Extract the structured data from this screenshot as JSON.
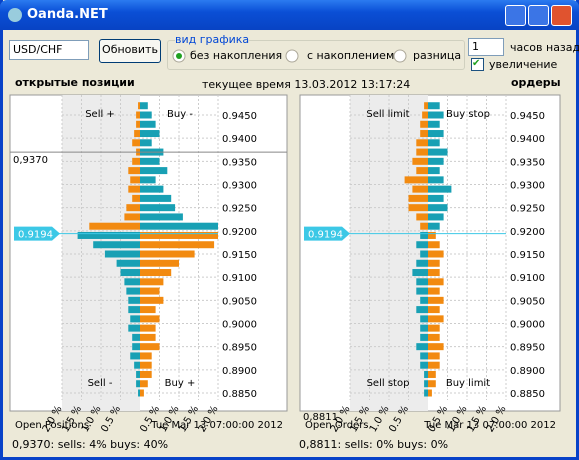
{
  "window": {
    "title": "Oanda.NET"
  },
  "controls": {
    "pair": "USD/CHF",
    "refresh": "Обновить",
    "group_title": "вид графика",
    "radios": [
      "без накопления",
      "с накоплением",
      "разница"
    ],
    "hours": "1",
    "hours_label": "часов назад",
    "zoom": "увеличение"
  },
  "header": {
    "left": "открытые позиции",
    "time": "текущее время 13.03.2012 13:17:24",
    "right": "ордеры"
  },
  "colors": {
    "above": "#f28a10",
    "below": "#18a0b4",
    "alt": "#18a0b4"
  },
  "current_price": {
    "value": 0.9194,
    "label": "0.9194"
  },
  "price_ticks": [
    {
      "value": 0.945,
      "label": "0.9450"
    },
    {
      "value": 0.94,
      "label": "0.9400"
    },
    {
      "value": 0.935,
      "label": "0.9350"
    },
    {
      "value": 0.93,
      "label": "0.9300"
    },
    {
      "value": 0.925,
      "label": "0.9250"
    },
    {
      "value": 0.92,
      "label": "0.9200"
    },
    {
      "value": 0.915,
      "label": "0.9150"
    },
    {
      "value": 0.91,
      "label": "0.9100"
    },
    {
      "value": 0.905,
      "label": "0.9050"
    },
    {
      "value": 0.9,
      "label": "0.9000"
    },
    {
      "value": 0.895,
      "label": "0.8950"
    },
    {
      "value": 0.89,
      "label": "0.8900"
    },
    {
      "value": 0.885,
      "label": "0.8850"
    }
  ],
  "pct_ticks": [
    {
      "value": 2,
      "label": "2.0 %"
    },
    {
      "value": 1.5,
      "label": "1.5 %"
    },
    {
      "value": 1,
      "label": "1.0 %"
    },
    {
      "value": 0.5,
      "label": "0.5 %"
    }
  ],
  "levels": [
    0.947,
    0.945,
    0.943,
    0.941,
    0.939,
    0.937,
    0.935,
    0.933,
    0.931,
    0.929,
    0.927,
    0.925,
    0.923,
    0.921,
    0.919,
    0.917,
    0.915,
    0.913,
    0.911,
    0.909,
    0.907,
    0.905,
    0.903,
    0.901,
    0.899,
    0.897,
    0.895,
    0.893,
    0.891,
    0.889,
    0.887,
    0.885
  ],
  "positions": {
    "quadrants": [
      "Sell +",
      "Buy -",
      "Sell -",
      "Buy +"
    ],
    "marker": {
      "value": 0.937,
      "label": "0,9370"
    },
    "footer": "Open Positions",
    "date": "Tue Mar 13 07:00:00 2012",
    "status": "0,9370:  sells: 4%  buys: 40%",
    "sells": [
      0.05,
      0.1,
      0.1,
      0.15,
      0.2,
      0.1,
      0.2,
      0.3,
      0.25,
      0.3,
      0.2,
      0.35,
      0.4,
      1.3,
      1.6,
      1.2,
      0.9,
      0.6,
      0.5,
      0.4,
      0.35,
      0.3,
      0.3,
      0.25,
      0.3,
      0.2,
      0.2,
      0.25,
      0.15,
      0.1,
      0.1,
      0.05
    ],
    "buys": [
      0.2,
      0.3,
      0.4,
      0.5,
      0.3,
      0.6,
      0.5,
      0.7,
      0.4,
      0.6,
      0.8,
      0.9,
      1.1,
      2.0,
      2.0,
      1.9,
      1.4,
      1.0,
      0.8,
      0.6,
      0.5,
      0.6,
      0.4,
      0.5,
      0.4,
      0.4,
      0.5,
      0.3,
      0.3,
      0.3,
      0.2,
      0.1
    ]
  },
  "orders": {
    "quadrants": [
      "Sell limit",
      "Buy stop",
      "Sell stop",
      "Buy limit"
    ],
    "marker": {
      "value": 0.8811,
      "label": "0,8811"
    },
    "footer": "Open Orders",
    "date": "Tue Mar 13 07:00:00 2012",
    "status": "0,8811:  sells: 0%  buys: 0%",
    "sells": [
      0.1,
      0.15,
      0.2,
      0.2,
      0.3,
      0.3,
      0.4,
      0.3,
      0.6,
      0.4,
      0.5,
      0.5,
      0.3,
      0.2,
      0.2,
      0.3,
      0.2,
      0.3,
      0.4,
      0.3,
      0.3,
      0.2,
      0.3,
      0.2,
      0.2,
      0.2,
      0.3,
      0.2,
      0.2,
      0.1,
      0.1,
      0.1
    ],
    "buys": [
      0.3,
      0.4,
      0.3,
      0.4,
      0.3,
      0.5,
      0.4,
      0.3,
      0.4,
      0.6,
      0.4,
      0.5,
      0.4,
      0.3,
      0.2,
      0.3,
      0.4,
      0.3,
      0.3,
      0.4,
      0.3,
      0.4,
      0.3,
      0.4,
      0.3,
      0.3,
      0.4,
      0.3,
      0.3,
      0.2,
      0.2,
      0.1
    ]
  }
}
